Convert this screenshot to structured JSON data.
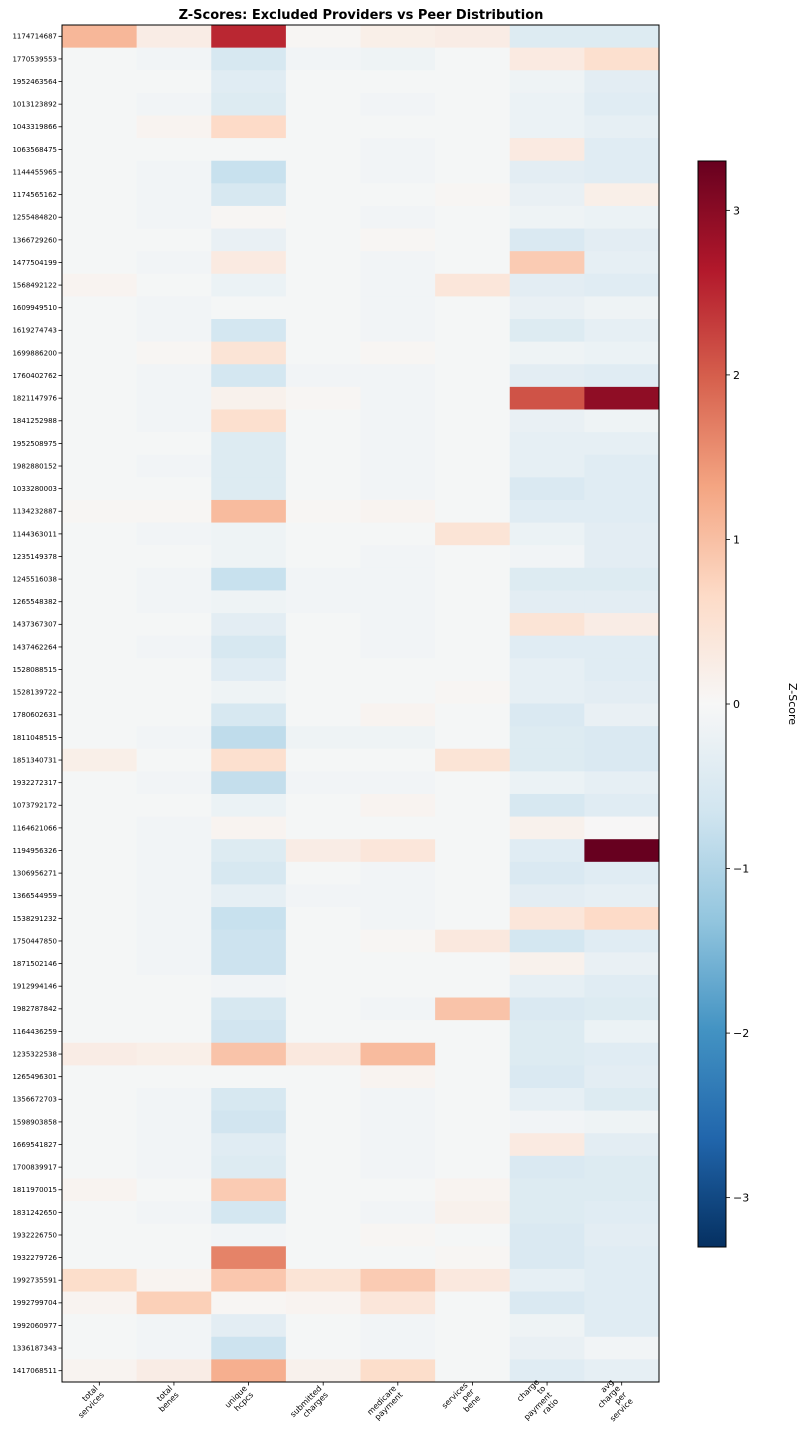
{
  "chart_data": {
    "type": "heatmap",
    "title": "Z-Scores: Excluded Providers vs Peer Distribution",
    "colorbar": {
      "label": "Z-Score",
      "colormap": "RdBu_r",
      "vmin": -3.3,
      "vmax": 3.3,
      "ticks": [
        3,
        2,
        1,
        0,
        -1,
        -2,
        -3
      ],
      "tick_labels": [
        "3",
        "2",
        "1",
        "0",
        "−1",
        "−2",
        "−3"
      ]
    },
    "columns": [
      [
        "total",
        "services"
      ],
      [
        "total",
        "benes"
      ],
      [
        "unique",
        "hcpcs"
      ],
      [
        "submitted",
        "charges"
      ],
      [
        "medicare",
        "payment"
      ],
      [
        "services",
        "per",
        "bene"
      ],
      [
        "charge",
        "to",
        "payment",
        "ratio"
      ],
      [
        "avg",
        "charge",
        "per",
        "service"
      ]
    ],
    "rows": [
      "1174714687",
      "1770539553",
      "1952463564",
      "1013123892",
      "1043319866",
      "1063568475",
      "1144455965",
      "1174565162",
      "1255484820",
      "1366729260",
      "1477504199",
      "1568492122",
      "1609949510",
      "1619274743",
      "1699886200",
      "1760402762",
      "1821147976",
      "1841252988",
      "1952508975",
      "1982880152",
      "1033280003",
      "1134232887",
      "1144363011",
      "1235149378",
      "1245516038",
      "1265548382",
      "1437367307",
      "1437462264",
      "1528088515",
      "1528139722",
      "1780602631",
      "1811048515",
      "1851340731",
      "1932272317",
      "1073792172",
      "1164621066",
      "1194956326",
      "1306956271",
      "1366544959",
      "1538291232",
      "1750447850",
      "1871502146",
      "1912994146",
      "1982787842",
      "1164436259",
      "1235322538",
      "1265496301",
      "1356672703",
      "1598903858",
      "1669541827",
      "1700839917",
      "1811970015",
      "1831242650",
      "1932226750",
      "1932279726",
      "1992735591",
      "1992799704",
      "1992060977",
      "1336187343",
      "1417068511"
    ],
    "values": [
      [
        1.1,
        0.25,
        2.5,
        0.05,
        0.2,
        0.25,
        -0.45,
        -0.45
      ],
      [
        -0.05,
        -0.1,
        -0.55,
        -0.1,
        -0.15,
        -0.05,
        0.3,
        0.55
      ],
      [
        -0.05,
        -0.05,
        -0.4,
        -0.05,
        -0.05,
        -0.05,
        -0.15,
        -0.35
      ],
      [
        -0.05,
        -0.1,
        -0.45,
        -0.05,
        -0.1,
        -0.05,
        -0.2,
        -0.4
      ],
      [
        -0.05,
        0.1,
        0.65,
        -0.05,
        -0.05,
        -0.05,
        -0.2,
        -0.3
      ],
      [
        -0.05,
        -0.05,
        -0.05,
        -0.05,
        -0.1,
        -0.05,
        0.3,
        -0.4
      ],
      [
        -0.05,
        -0.1,
        -0.75,
        -0.05,
        -0.1,
        -0.05,
        -0.35,
        -0.4
      ],
      [
        -0.05,
        -0.1,
        -0.55,
        -0.05,
        -0.05,
        0.05,
        -0.25,
        0.2
      ],
      [
        -0.05,
        -0.1,
        0.05,
        -0.05,
        -0.1,
        -0.05,
        -0.15,
        -0.2
      ],
      [
        -0.05,
        -0.05,
        -0.25,
        -0.05,
        0.05,
        -0.05,
        -0.5,
        -0.35
      ],
      [
        -0.05,
        -0.1,
        0.3,
        -0.05,
        -0.1,
        -0.05,
        0.85,
        -0.3
      ],
      [
        0.1,
        -0.05,
        -0.2,
        -0.05,
        -0.1,
        0.4,
        -0.35,
        -0.4
      ],
      [
        -0.05,
        -0.1,
        -0.05,
        -0.05,
        -0.1,
        -0.05,
        -0.25,
        -0.15
      ],
      [
        -0.05,
        -0.1,
        -0.6,
        -0.05,
        -0.1,
        -0.05,
        -0.45,
        -0.3
      ],
      [
        -0.05,
        0.05,
        0.45,
        -0.05,
        0.05,
        -0.05,
        -0.15,
        -0.2
      ],
      [
        -0.05,
        -0.1,
        -0.6,
        -0.1,
        -0.1,
        -0.05,
        -0.35,
        -0.4
      ],
      [
        -0.05,
        -0.1,
        0.15,
        0.05,
        -0.1,
        -0.05,
        2.1,
        2.95
      ],
      [
        -0.05,
        -0.1,
        0.55,
        -0.05,
        -0.1,
        -0.05,
        -0.25,
        -0.15
      ],
      [
        -0.05,
        -0.05,
        -0.45,
        -0.05,
        -0.1,
        -0.05,
        -0.3,
        -0.3
      ],
      [
        -0.05,
        -0.1,
        -0.45,
        -0.05,
        -0.1,
        -0.05,
        -0.3,
        -0.4
      ],
      [
        -0.05,
        -0.05,
        -0.45,
        -0.05,
        -0.1,
        -0.05,
        -0.5,
        -0.4
      ],
      [
        0.05,
        0.05,
        1.05,
        0.05,
        0.1,
        -0.05,
        -0.4,
        -0.4
      ],
      [
        -0.05,
        -0.1,
        -0.15,
        -0.05,
        -0.05,
        0.45,
        -0.2,
        -0.35
      ],
      [
        -0.05,
        -0.05,
        -0.15,
        -0.05,
        -0.1,
        -0.05,
        -0.1,
        -0.35
      ],
      [
        -0.05,
        -0.1,
        -0.75,
        -0.1,
        -0.1,
        -0.05,
        -0.45,
        -0.45
      ],
      [
        -0.05,
        -0.1,
        -0.15,
        -0.1,
        -0.1,
        -0.05,
        -0.35,
        -0.35
      ],
      [
        -0.05,
        -0.05,
        -0.35,
        -0.05,
        -0.1,
        -0.05,
        0.45,
        0.25
      ],
      [
        -0.05,
        -0.1,
        -0.55,
        -0.05,
        -0.1,
        -0.05,
        -0.4,
        -0.4
      ],
      [
        -0.05,
        -0.05,
        -0.4,
        -0.05,
        -0.05,
        -0.05,
        -0.3,
        -0.4
      ],
      [
        -0.05,
        -0.05,
        -0.15,
        -0.05,
        -0.05,
        0.05,
        -0.3,
        -0.35
      ],
      [
        -0.05,
        -0.05,
        -0.55,
        -0.05,
        0.1,
        -0.05,
        -0.5,
        -0.25
      ],
      [
        -0.05,
        -0.1,
        -0.85,
        -0.15,
        -0.15,
        -0.05,
        -0.45,
        -0.5
      ],
      [
        0.2,
        -0.05,
        0.55,
        -0.05,
        -0.05,
        0.45,
        -0.45,
        -0.5
      ],
      [
        -0.05,
        -0.1,
        -0.8,
        -0.1,
        -0.1,
        -0.05,
        -0.2,
        -0.3
      ],
      [
        -0.05,
        -0.05,
        -0.2,
        -0.05,
        0.1,
        -0.05,
        -0.55,
        -0.4
      ],
      [
        -0.05,
        -0.1,
        0.1,
        -0.05,
        -0.05,
        -0.05,
        0.15,
        0.02
      ],
      [
        -0.05,
        -0.1,
        -0.45,
        0.25,
        0.4,
        -0.05,
        -0.4,
        3.3
      ],
      [
        -0.05,
        -0.1,
        -0.55,
        -0.05,
        -0.1,
        -0.05,
        -0.5,
        -0.4
      ],
      [
        -0.05,
        -0.1,
        -0.3,
        -0.1,
        -0.1,
        -0.05,
        -0.35,
        -0.3
      ],
      [
        -0.05,
        -0.1,
        -0.75,
        -0.05,
        -0.1,
        -0.05,
        0.4,
        0.65
      ],
      [
        -0.05,
        -0.1,
        -0.7,
        -0.05,
        0.05,
        0.35,
        -0.6,
        -0.4
      ],
      [
        -0.05,
        -0.1,
        -0.7,
        -0.05,
        -0.05,
        -0.05,
        0.15,
        -0.25
      ],
      [
        -0.05,
        -0.05,
        -0.1,
        -0.05,
        -0.05,
        -0.05,
        -0.3,
        -0.4
      ],
      [
        -0.05,
        -0.05,
        -0.55,
        -0.05,
        -0.1,
        0.95,
        -0.5,
        -0.45
      ],
      [
        -0.05,
        -0.05,
        -0.65,
        -0.05,
        -0.05,
        -0.05,
        -0.45,
        -0.2
      ],
      [
        0.25,
        0.2,
        0.95,
        0.35,
        1.05,
        -0.05,
        -0.45,
        -0.4
      ],
      [
        -0.05,
        -0.05,
        -0.05,
        -0.05,
        0.1,
        -0.05,
        -0.5,
        -0.35
      ],
      [
        -0.05,
        -0.1,
        -0.55,
        -0.05,
        -0.1,
        -0.05,
        -0.3,
        -0.45
      ],
      [
        -0.05,
        -0.1,
        -0.65,
        -0.05,
        -0.1,
        -0.05,
        -0.1,
        -0.15
      ],
      [
        -0.05,
        -0.1,
        -0.4,
        -0.05,
        -0.1,
        -0.05,
        0.3,
        -0.35
      ],
      [
        -0.05,
        -0.1,
        -0.45,
        -0.05,
        -0.1,
        -0.05,
        -0.5,
        -0.45
      ],
      [
        0.1,
        -0.05,
        0.85,
        -0.05,
        -0.05,
        0.1,
        -0.45,
        -0.45
      ],
      [
        -0.05,
        -0.1,
        -0.6,
        -0.05,
        -0.1,
        0.15,
        -0.45,
        -0.4
      ],
      [
        -0.05,
        -0.05,
        -0.1,
        -0.05,
        0.05,
        -0.05,
        -0.5,
        -0.35
      ],
      [
        -0.05,
        -0.05,
        1.65,
        -0.05,
        -0.05,
        0.05,
        -0.5,
        -0.4
      ],
      [
        0.6,
        0.1,
        0.9,
        0.45,
        0.85,
        0.35,
        -0.3,
        -0.4
      ],
      [
        0.1,
        0.8,
        0.05,
        0.1,
        0.4,
        -0.05,
        -0.5,
        -0.4
      ],
      [
        -0.05,
        -0.1,
        -0.35,
        -0.05,
        -0.1,
        -0.05,
        -0.15,
        -0.4
      ],
      [
        -0.05,
        -0.1,
        -0.7,
        -0.05,
        -0.1,
        -0.05,
        -0.25,
        -0.1
      ],
      [
        0.1,
        0.25,
        1.2,
        0.15,
        0.6,
        -0.05,
        -0.4,
        -0.3
      ]
    ]
  }
}
